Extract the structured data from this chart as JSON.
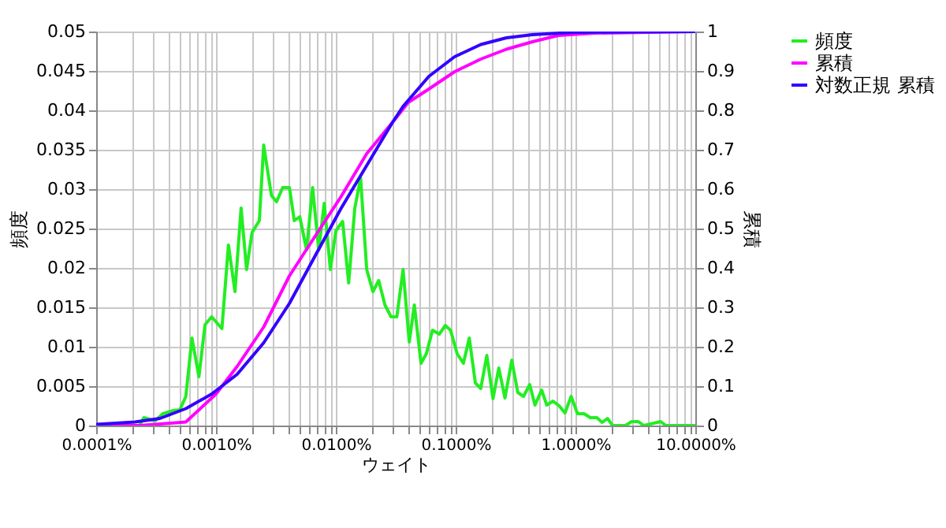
{
  "chart_data": {
    "type": "line",
    "xlabel": "ウェイト",
    "ylabel": "頻度",
    "y2label": "累積",
    "log": "x",
    "grid": true,
    "legend": "right",
    "line_style": "solid",
    "marker": "none",
    "xlim": [
      0.0001,
      10
    ],
    "xticks": [
      {
        "value": 0.0001,
        "label": "0.0001%"
      },
      {
        "value": 0.0002,
        "label": null
      },
      {
        "value": 0.0003,
        "label": null
      },
      {
        "value": 0.0004,
        "label": null
      },
      {
        "value": 0.0005,
        "label": null
      },
      {
        "value": 0.0006,
        "label": null
      },
      {
        "value": 0.0007,
        "label": null
      },
      {
        "value": 0.0008,
        "label": null
      },
      {
        "value": 0.0009,
        "label": null
      },
      {
        "value": 0.001,
        "label": "0.0010%"
      },
      {
        "value": 0.002,
        "label": null
      },
      {
        "value": 0.003,
        "label": null
      },
      {
        "value": 0.004,
        "label": null
      },
      {
        "value": 0.005,
        "label": null
      },
      {
        "value": 0.006,
        "label": null
      },
      {
        "value": 0.007,
        "label": null
      },
      {
        "value": 0.008,
        "label": null
      },
      {
        "value": 0.009,
        "label": null
      },
      {
        "value": 0.01,
        "label": "0.0100%"
      },
      {
        "value": 0.02,
        "label": null
      },
      {
        "value": 0.03,
        "label": null
      },
      {
        "value": 0.04,
        "label": null
      },
      {
        "value": 0.05,
        "label": null
      },
      {
        "value": 0.06,
        "label": null
      },
      {
        "value": 0.07,
        "label": null
      },
      {
        "value": 0.08,
        "label": null
      },
      {
        "value": 0.09,
        "label": null
      },
      {
        "value": 0.1,
        "label": "0.1000%"
      },
      {
        "value": 0.2,
        "label": null
      },
      {
        "value": 0.3,
        "label": null
      },
      {
        "value": 0.4,
        "label": null
      },
      {
        "value": 0.5,
        "label": null
      },
      {
        "value": 0.6,
        "label": null
      },
      {
        "value": 0.7,
        "label": null
      },
      {
        "value": 0.8,
        "label": null
      },
      {
        "value": 0.9,
        "label": null
      },
      {
        "value": 1,
        "label": "1.0000%"
      },
      {
        "value": 2,
        "label": null
      },
      {
        "value": 3,
        "label": null
      },
      {
        "value": 4,
        "label": null
      },
      {
        "value": 5,
        "label": null
      },
      {
        "value": 6,
        "label": null
      },
      {
        "value": 7,
        "label": null
      },
      {
        "value": 8,
        "label": null
      },
      {
        "value": 9,
        "label": null
      },
      {
        "value": 10,
        "label": "10.0000%"
      }
    ],
    "ylim": [
      0,
      0.05
    ],
    "yticks": [
      0,
      0.005,
      0.01,
      0.015,
      0.02,
      0.025,
      0.03,
      0.035,
      0.04,
      0.045,
      0.05
    ],
    "y2lim": [
      0,
      1
    ],
    "y2ticks": [
      0,
      0.1,
      0.2,
      0.3,
      0.4,
      0.5,
      0.6,
      0.7,
      0.8,
      0.9,
      1
    ],
    "series": [
      {
        "name": "頻度",
        "color": "#22ee22",
        "x": [
          0.0001,
          0.00023,
          0.00025,
          0.00031,
          0.00036,
          0.00044,
          0.0005,
          0.00056,
          0.00063,
          0.00072,
          0.00081,
          0.00092,
          0.00112,
          0.00127,
          0.00144,
          0.00162,
          0.0018,
          0.002,
          0.0023,
          0.0025,
          0.0029,
          0.0032,
          0.0036,
          0.0041,
          0.0045,
          0.005,
          0.0057,
          0.0064,
          0.0072,
          0.008,
          0.009,
          0.01,
          0.0114,
          0.0128,
          0.0144,
          0.0161,
          0.0181,
          0.0204,
          0.0228,
          0.0257,
          0.0289,
          0.0323,
          0.0364,
          0.041,
          0.0452,
          0.0514,
          0.0569,
          0.0641,
          0.073,
          0.082,
          0.0906,
          0.103,
          0.116,
          0.13,
          0.146,
          0.162,
          0.182,
          0.205,
          0.229,
          0.258,
          0.294,
          0.33,
          0.368,
          0.415,
          0.459,
          0.522,
          0.576,
          0.649,
          0.731,
          0.817,
          0.92,
          1.04,
          1.18,
          1.33,
          1.51,
          1.67,
          1.85,
          2.04,
          2.61,
          2.94,
          3.35,
          3.71,
          5.14,
          5.68,
          10
        ],
        "values": [
          0,
          0,
          0.001,
          0.0006,
          0.0015,
          0.0019,
          0.002,
          0.0037,
          0.0111,
          0.0062,
          0.0128,
          0.0138,
          0.0123,
          0.0229,
          0.017,
          0.0276,
          0.0198,
          0.0245,
          0.026,
          0.0356,
          0.0292,
          0.0284,
          0.0302,
          0.0302,
          0.026,
          0.0265,
          0.0223,
          0.0302,
          0.0223,
          0.0282,
          0.0198,
          0.0247,
          0.0259,
          0.0181,
          0.0276,
          0.0314,
          0.0198,
          0.017,
          0.0184,
          0.0153,
          0.0138,
          0.0138,
          0.0198,
          0.0106,
          0.0153,
          0.0079,
          0.0091,
          0.0121,
          0.0116,
          0.0127,
          0.0121,
          0.0091,
          0.0079,
          0.0111,
          0.0054,
          0.0047,
          0.0089,
          0.0034,
          0.0073,
          0.0035,
          0.0083,
          0.0042,
          0.0037,
          0.0052,
          0.0026,
          0.0045,
          0.0026,
          0.0031,
          0.0025,
          0.0016,
          0.0037,
          0.0015,
          0.0015,
          0.001,
          0.001,
          0.0004,
          0.0009,
          0,
          0,
          0.0005,
          0.0005,
          0,
          0.0005,
          0,
          0
        ]
      },
      {
        "name": "累積",
        "color": "#ff00ff",
        "axis": "y2",
        "x": [
          0.0001,
          0.00023,
          0.00056,
          0.001,
          0.0015,
          0.0025,
          0.0041,
          0.0067,
          0.011,
          0.0181,
          0.0298,
          0.0402,
          0.0597,
          0.098,
          0.162,
          0.265,
          0.437,
          0.718,
          1.44,
          10
        ],
        "values": [
          0,
          0,
          0.009,
          0.08,
          0.15,
          0.25,
          0.38,
          0.48,
          0.58,
          0.69,
          0.77,
          0.82,
          0.854,
          0.898,
          0.93,
          0.955,
          0.974,
          0.99,
          0.996,
          1
        ]
      },
      {
        "name": "対数正規 累積",
        "color": "#3300ff",
        "axis": "y2",
        "x": [
          0.0001,
          0.00021,
          0.00034,
          0.00056,
          0.00092,
          0.0015,
          0.0025,
          0.0041,
          0.0067,
          0.011,
          0.0181,
          0.0298,
          0.0364,
          0.0597,
          0.098,
          0.162,
          0.265,
          0.437,
          0.968,
          10
        ],
        "values": [
          0.003,
          0.009,
          0.018,
          0.043,
          0.08,
          0.13,
          0.21,
          0.31,
          0.43,
          0.55,
          0.66,
          0.77,
          0.81,
          0.886,
          0.936,
          0.967,
          0.984,
          0.992,
          0.998,
          1
        ]
      }
    ]
  }
}
